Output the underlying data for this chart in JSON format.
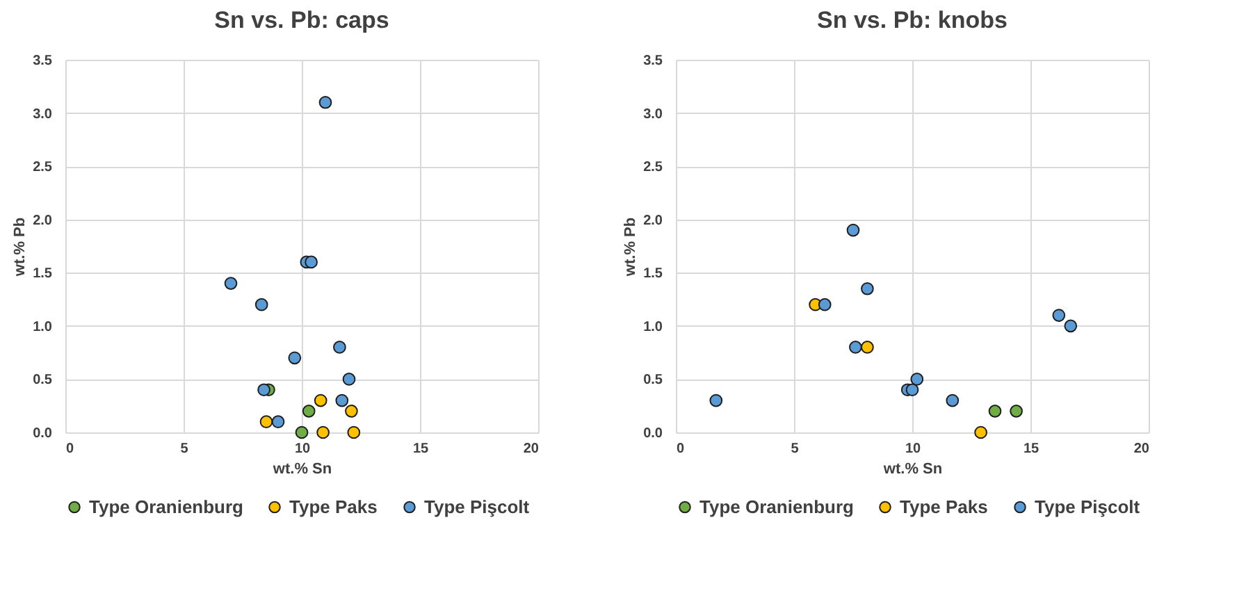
{
  "chart_data": [
    {
      "type": "scatter",
      "title": "Sn vs. Pb: caps",
      "xlabel": "wt.% Sn",
      "ylabel": "wt.% Pb",
      "xlim": [
        0,
        20
      ],
      "xticks": [
        0,
        5,
        10,
        15,
        20
      ],
      "ylim": [
        0,
        3.5
      ],
      "yticks": [
        {
          "value": 0,
          "label": "0.0"
        },
        0.5,
        {
          "value": 1,
          "label": "1.0"
        },
        1.5,
        {
          "value": 2,
          "label": "2.0"
        },
        2.5,
        {
          "value": 3,
          "label": "3.0"
        },
        3.5
      ],
      "grid": true,
      "legend": "bottom",
      "marker": "circle",
      "series": [
        {
          "name": "Type Oranienburg",
          "color": "#70ad47",
          "x": [
            8.6,
            10.3,
            10.0
          ],
          "values": [
            0.4,
            0.2,
            0
          ]
        },
        {
          "name": "Type Paks",
          "color": "#ffc000",
          "x": [
            10.8,
            12.1,
            8.5,
            10.9,
            12.2
          ],
          "values": [
            0.3,
            0.2,
            0.1,
            0,
            0
          ]
        },
        {
          "name": "Type Pişcolt",
          "color": "#5b9bd5",
          "x": [
            11.0,
            10.2,
            10.4,
            7.0,
            8.3,
            9.7,
            11.6,
            12.0,
            8.4,
            11.7,
            9.0
          ],
          "values": [
            3.1,
            1.6,
            1.6,
            1.4,
            1.2,
            0.7,
            0.8,
            0.5,
            0.4,
            0.3,
            0.1
          ]
        }
      ]
    },
    {
      "type": "scatter",
      "title": "Sn vs. Pb: knobs",
      "xlabel": "wt.% Sn",
      "ylabel": "wt.% Pb",
      "xlim": [
        0,
        20
      ],
      "xticks": [
        0,
        5,
        10,
        15,
        20
      ],
      "ylim": [
        0,
        3.5
      ],
      "yticks": [
        {
          "value": 0,
          "label": "0.0"
        },
        0.5,
        {
          "value": 1,
          "label": "1.0"
        },
        1.5,
        {
          "value": 2,
          "label": "2.0"
        },
        2.5,
        {
          "value": 3,
          "label": "3.0"
        },
        3.5
      ],
      "grid": true,
      "legend": "bottom",
      "marker": "circle",
      "series": [
        {
          "name": "Type Oranienburg",
          "color": "#70ad47",
          "x": [
            13.5,
            14.4
          ],
          "values": [
            0.2,
            0.2
          ]
        },
        {
          "name": "Type Paks",
          "color": "#ffc000",
          "x": [
            5.9,
            8.1,
            12.9
          ],
          "values": [
            1.2,
            0.8,
            0
          ]
        },
        {
          "name": "Type Pişcolt",
          "color": "#5b9bd5",
          "x": [
            1.7,
            7.5,
            8.1,
            6.3,
            7.6,
            9.8,
            10.0,
            10.2,
            11.7,
            16.2,
            16.7
          ],
          "values": [
            0.3,
            1.9,
            1.35,
            1.2,
            0.8,
            0.4,
            0.4,
            0.5,
            0.3,
            1.1,
            1.0
          ]
        }
      ]
    }
  ]
}
